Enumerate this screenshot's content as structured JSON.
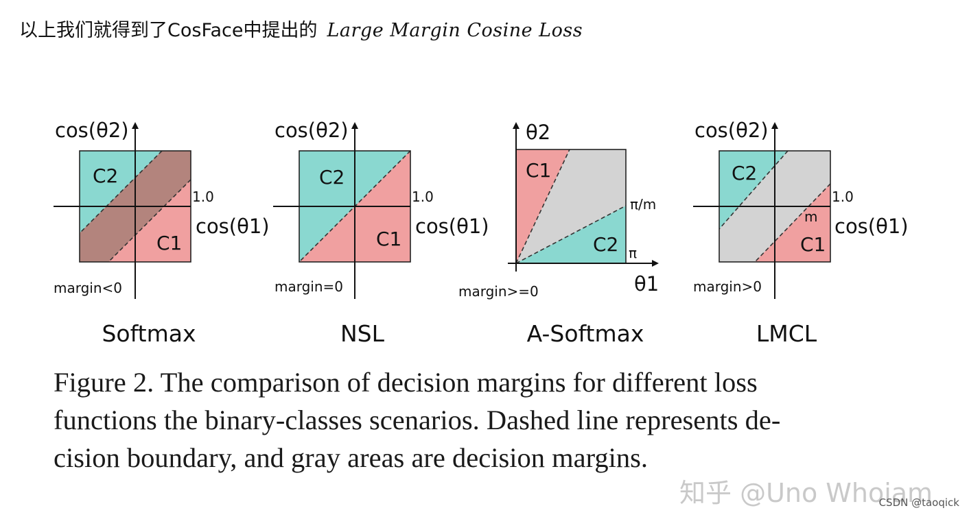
{
  "header": {
    "text": "以上我们就得到了CosFace中提出的",
    "math": "Large Margin Cosine Loss"
  },
  "colors": {
    "teal": "#8ad8d0",
    "salmon": "#f0a0a0",
    "gray": "#d3d3d3",
    "brown": "#b3847d"
  },
  "figure": {
    "panels": [
      {
        "name": "softmax",
        "y_label": "cos(θ2)",
        "x_label": "cos(θ1)",
        "tick_label": "1.0",
        "region_labels": [
          "C2",
          "C1"
        ],
        "margin_label": "margin<0",
        "title": "Softmax"
      },
      {
        "name": "nsl",
        "y_label": "cos(θ2)",
        "x_label": "cos(θ1)",
        "tick_label": "1.0",
        "region_labels": [
          "C2",
          "C1"
        ],
        "margin_label": "margin=0",
        "title": "NSL"
      },
      {
        "name": "a-softmax",
        "y_label": "θ2",
        "x_label": "θ1",
        "tick_labels": [
          "π/m",
          "π"
        ],
        "region_labels": [
          "C1",
          "C2"
        ],
        "margin_label": "margin>=0",
        "title": "A-Softmax"
      },
      {
        "name": "lmcl",
        "y_label": "cos(θ2)",
        "x_label": "cos(θ1)",
        "tick_label": "1.0",
        "extra_label": "m",
        "region_labels": [
          "C2",
          "C1"
        ],
        "margin_label": "margin>0",
        "title": "LMCL"
      }
    ]
  },
  "caption": {
    "line1": "Figure 2. The comparison of decision margins for different loss",
    "line2": "functions the binary-classes scenarios. Dashed line represents de-",
    "line3": "cision boundary, and gray areas are decision margins."
  },
  "watermark": "知乎 @Uno Whoiam",
  "credit": "CSDN @taoqick"
}
